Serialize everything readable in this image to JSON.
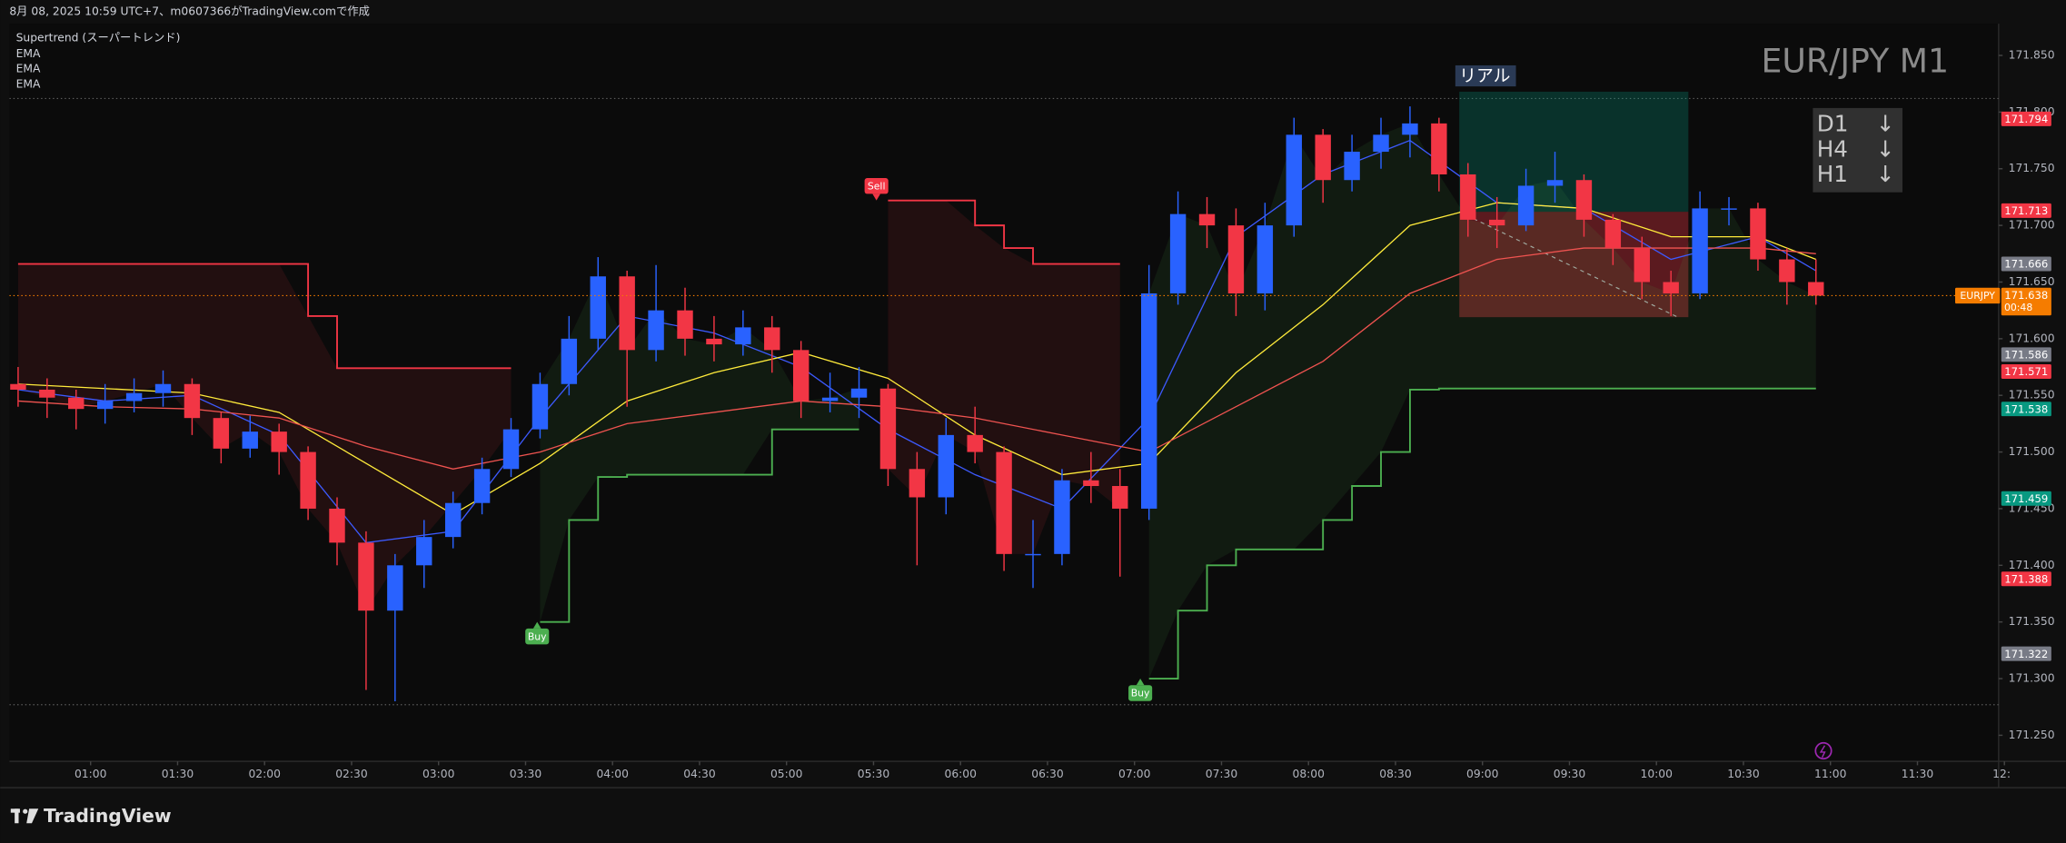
{
  "chart_data": {
    "type": "candlestick",
    "header": "8月 08, 2025 10:59 UTC+7、m0607366がTradingView.comで作成",
    "watermark": "EUR/JPY M1",
    "xlim": [
      32,
      718
    ],
    "ylim": [
      171.227,
      171.878
    ],
    "xticks": [
      {
        "value": 60,
        "label": "01:00"
      },
      {
        "value": 90,
        "label": "01:30"
      },
      {
        "value": 120,
        "label": "02:00"
      },
      {
        "value": 150,
        "label": "02:30"
      },
      {
        "value": 180,
        "label": "03:00"
      },
      {
        "value": 210,
        "label": "03:30"
      },
      {
        "value": 240,
        "label": "04:00"
      },
      {
        "value": 270,
        "label": "04:30"
      },
      {
        "value": 300,
        "label": "05:00"
      },
      {
        "value": 330,
        "label": "05:30"
      },
      {
        "value": 360,
        "label": "06:00"
      },
      {
        "value": 390,
        "label": "06:30"
      },
      {
        "value": 420,
        "label": "07:00"
      },
      {
        "value": 450,
        "label": "07:30"
      },
      {
        "value": 480,
        "label": "08:00"
      },
      {
        "value": 510,
        "label": "08:30"
      },
      {
        "value": 540,
        "label": "09:00"
      },
      {
        "value": 570,
        "label": "09:30"
      },
      {
        "value": 600,
        "label": "10:00"
      },
      {
        "value": 630,
        "label": "10:30"
      },
      {
        "value": 660,
        "label": "11:00"
      },
      {
        "value": 690,
        "label": "11:30"
      },
      {
        "value": 720,
        "label": "12:"
      }
    ],
    "yticks": [
      {
        "value": 171.25,
        "label": "171.250"
      },
      {
        "value": 171.3,
        "label": "171.300"
      },
      {
        "value": 171.35,
        "label": "171.350"
      },
      {
        "value": 171.4,
        "label": "171.400"
      },
      {
        "value": 171.45,
        "label": "171.450"
      },
      {
        "value": 171.5,
        "label": "171.500"
      },
      {
        "value": 171.55,
        "label": "171.550"
      },
      {
        "value": 171.6,
        "label": "171.600"
      },
      {
        "value": 171.65,
        "label": "171.650"
      },
      {
        "value": 171.7,
        "label": "171.700"
      },
      {
        "value": 171.75,
        "label": "171.750"
      },
      {
        "value": 171.8,
        "label": "171.800"
      },
      {
        "value": 171.85,
        "label": "171.850"
      }
    ],
    "candles": {
      "up_color": "#2962ff",
      "down_color": "#f23645",
      "x": [
        35,
        45,
        55,
        65,
        75,
        85,
        95,
        105,
        115,
        125,
        135,
        145,
        155,
        165,
        175,
        185,
        195,
        205,
        215,
        225,
        235,
        245,
        255,
        265,
        275,
        285,
        295,
        305,
        315,
        325,
        335,
        345,
        355,
        365,
        375,
        385,
        395,
        405,
        415,
        425,
        435,
        445,
        455,
        465,
        475,
        485,
        495,
        505,
        515,
        525,
        535,
        545,
        555,
        565,
        575,
        585,
        595,
        605,
        615,
        625,
        635,
        645,
        655
      ],
      "open": [
        171.56,
        171.555,
        171.548,
        171.538,
        171.545,
        171.552,
        171.56,
        171.53,
        171.503,
        171.518,
        171.5,
        171.45,
        171.42,
        171.36,
        171.4,
        171.425,
        171.455,
        171.485,
        171.52,
        171.56,
        171.6,
        171.655,
        171.59,
        171.625,
        171.6,
        171.595,
        171.61,
        171.59,
        171.545,
        171.548,
        171.556,
        171.485,
        171.46,
        171.515,
        171.5,
        171.41,
        171.41,
        171.475,
        171.47,
        171.45,
        171.64,
        171.71,
        171.7,
        171.64,
        171.7,
        171.78,
        171.74,
        171.765,
        171.78,
        171.79,
        171.745,
        171.705,
        171.7,
        171.735,
        171.74,
        171.705,
        171.68,
        171.65,
        171.64,
        171.715,
        171.715,
        171.67,
        171.65
      ],
      "high": [
        171.575,
        171.565,
        171.555,
        171.56,
        171.565,
        171.572,
        171.565,
        171.535,
        171.532,
        171.525,
        171.505,
        171.46,
        171.43,
        171.41,
        171.44,
        171.465,
        171.495,
        171.53,
        171.57,
        171.62,
        171.672,
        171.66,
        171.665,
        171.645,
        171.62,
        171.625,
        171.62,
        171.598,
        171.57,
        171.575,
        171.56,
        171.5,
        171.53,
        171.54,
        171.505,
        171.44,
        171.485,
        171.5,
        171.485,
        171.665,
        171.73,
        171.725,
        171.715,
        171.72,
        171.795,
        171.785,
        171.78,
        171.795,
        171.805,
        171.795,
        171.755,
        171.725,
        171.75,
        171.765,
        171.745,
        171.71,
        171.69,
        171.66,
        171.73,
        171.725,
        171.72,
        171.68,
        171.67
      ],
      "low": [
        171.54,
        171.53,
        171.52,
        171.525,
        171.535,
        171.54,
        171.515,
        171.49,
        171.495,
        171.48,
        171.44,
        171.4,
        171.29,
        171.28,
        171.38,
        171.415,
        171.445,
        171.478,
        171.512,
        171.55,
        171.59,
        171.54,
        171.58,
        171.585,
        171.58,
        171.585,
        171.57,
        171.53,
        171.535,
        171.53,
        171.47,
        171.4,
        171.445,
        171.49,
        171.395,
        171.38,
        171.4,
        171.455,
        171.39,
        171.44,
        171.63,
        171.68,
        171.62,
        171.625,
        171.69,
        171.72,
        171.73,
        171.75,
        171.76,
        171.73,
        171.69,
        171.68,
        171.695,
        171.72,
        171.69,
        171.665,
        171.635,
        171.62,
        171.635,
        171.7,
        171.66,
        171.63,
        171.63
      ],
      "close": [
        171.555,
        171.548,
        171.538,
        171.545,
        171.552,
        171.56,
        171.53,
        171.503,
        171.518,
        171.5,
        171.45,
        171.42,
        171.36,
        171.4,
        171.425,
        171.455,
        171.485,
        171.52,
        171.56,
        171.6,
        171.655,
        171.59,
        171.625,
        171.6,
        171.595,
        171.61,
        171.59,
        171.545,
        171.548,
        171.556,
        171.485,
        171.46,
        171.515,
        171.5,
        171.41,
        171.41,
        171.475,
        171.47,
        171.45,
        171.64,
        171.71,
        171.7,
        171.64,
        171.7,
        171.78,
        171.74,
        171.765,
        171.78,
        171.79,
        171.745,
        171.705,
        171.7,
        171.735,
        171.74,
        171.705,
        171.68,
        171.65,
        171.64,
        171.715,
        171.715,
        171.67,
        171.65,
        171.638
      ]
    },
    "supertrend": {
      "name": "Supertrend (スーパートレンド)",
      "upper_color": "#f23645",
      "lower_color": "#4caf50",
      "upper": [
        171.666,
        171.666,
        171.666,
        171.666,
        171.666,
        171.666,
        171.666,
        171.666,
        171.666,
        171.666,
        171.62,
        171.574,
        171.574,
        171.574,
        171.574,
        171.574,
        171.574,
        171.574,
        null,
        null,
        null,
        null,
        null,
        null,
        null,
        null,
        null,
        null,
        null,
        null,
        171.722,
        171.722,
        171.722,
        171.7,
        171.68,
        171.666,
        171.666,
        171.666,
        171.666,
        null,
        null,
        null,
        null,
        null,
        null,
        null,
        null,
        null,
        null,
        null,
        null,
        null,
        null,
        null,
        null,
        null,
        null,
        null,
        null,
        null,
        null,
        null,
        null
      ],
      "lower": [
        null,
        null,
        null,
        null,
        null,
        null,
        null,
        null,
        null,
        null,
        null,
        null,
        null,
        null,
        null,
        null,
        null,
        null,
        171.35,
        171.44,
        171.478,
        171.48,
        171.48,
        171.48,
        171.48,
        171.48,
        171.52,
        171.52,
        171.52,
        171.52,
        null,
        null,
        null,
        null,
        null,
        null,
        null,
        null,
        null,
        171.3,
        171.36,
        171.4,
        171.414,
        171.414,
        171.414,
        171.44,
        171.47,
        171.5,
        171.555,
        171.556,
        171.556,
        171.556,
        171.556,
        171.556,
        171.556,
        171.556,
        171.556,
        171.556,
        171.556,
        171.556,
        171.556,
        171.556,
        171.556
      ]
    },
    "series": [
      {
        "name": "EMA",
        "color": "#3d5afe",
        "x": [
          35,
          65,
          95,
          125,
          155,
          185,
          215,
          245,
          275,
          305,
          335,
          365,
          395,
          425,
          455,
          485,
          515,
          545,
          575,
          605,
          635,
          655
        ],
        "values": [
          171.555,
          171.545,
          171.55,
          171.515,
          171.42,
          171.43,
          171.53,
          171.62,
          171.605,
          171.575,
          171.52,
          171.48,
          171.45,
          171.53,
          171.69,
          171.745,
          171.775,
          171.72,
          171.715,
          171.67,
          171.69,
          171.66
        ]
      },
      {
        "name": "EMA",
        "color": "#ffeb3b",
        "x": [
          35,
          65,
          95,
          125,
          155,
          185,
          215,
          245,
          275,
          305,
          335,
          365,
          395,
          425,
          455,
          485,
          515,
          545,
          575,
          605,
          635,
          655
        ],
        "values": [
          171.56,
          171.556,
          171.552,
          171.535,
          171.49,
          171.445,
          171.49,
          171.545,
          171.57,
          171.588,
          171.565,
          171.515,
          171.48,
          171.49,
          171.57,
          171.63,
          171.7,
          171.72,
          171.715,
          171.69,
          171.69,
          171.67
        ]
      },
      {
        "name": "EMA",
        "color": "#ef5350",
        "x": [
          35,
          65,
          95,
          125,
          155,
          185,
          215,
          245,
          275,
          305,
          335,
          365,
          395,
          425,
          455,
          485,
          515,
          545,
          575,
          605,
          635,
          655
        ],
        "values": [
          171.545,
          171.54,
          171.538,
          171.53,
          171.505,
          171.485,
          171.5,
          171.525,
          171.535,
          171.545,
          171.54,
          171.53,
          171.515,
          171.5,
          171.54,
          171.58,
          171.64,
          171.67,
          171.68,
          171.68,
          171.68,
          171.675
        ]
      }
    ],
    "signals": [
      {
        "text": "Sell",
        "x": 331,
        "price": 171.722,
        "color": "#f23645"
      },
      {
        "text": "Buy",
        "x": 214,
        "price": 171.35,
        "color": "#4caf50"
      },
      {
        "text": "Buy",
        "x": 422,
        "price": 171.3,
        "color": "#4caf50"
      }
    ],
    "position": {
      "label": "リアル",
      "x": [
        532,
        611
      ],
      "target": 171.818,
      "entry": 171.712,
      "stop": 171.619
    },
    "levels": [
      171.812,
      171.277
    ],
    "last_price": {
      "value": 171.638,
      "symbol": "EURJPY",
      "countdown": "00:48",
      "color": "#f57c00"
    },
    "price_tags": [
      {
        "value": 171.794,
        "color": "#f23645"
      },
      {
        "value": 171.713,
        "color": "#f23645"
      },
      {
        "value": 171.666,
        "color": "#787b86"
      },
      {
        "value": 171.586,
        "color": "#787b86"
      },
      {
        "value": 171.571,
        "color": "#f23645"
      },
      {
        "value": 171.538,
        "color": "#089981"
      },
      {
        "value": 171.459,
        "color": "#089981"
      },
      {
        "value": 171.388,
        "color": "#f23645"
      },
      {
        "value": 171.322,
        "color": "#787b86"
      }
    ],
    "mtf_table": [
      [
        "D1",
        "↓"
      ],
      [
        "H4",
        "↓"
      ],
      [
        "H1",
        "↓"
      ]
    ],
    "brand": "TradingView"
  }
}
